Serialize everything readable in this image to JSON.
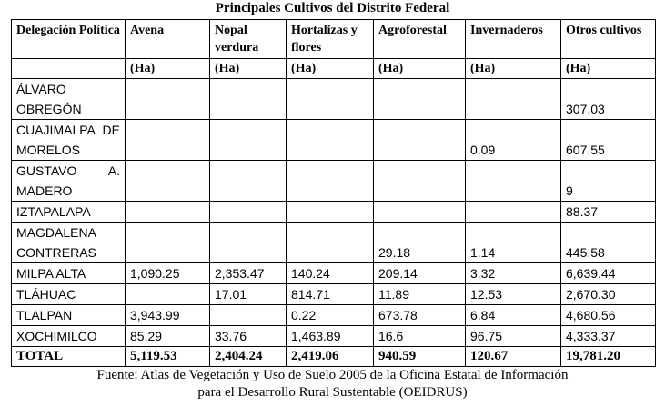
{
  "title": "Principales Cultivos del Distrito Federal",
  "table": {
    "columns": [
      "Delegación Política",
      "Avena",
      "Nopal verdura",
      "Hortalizas y flores",
      "Agroforestal",
      "Invernaderos",
      "Otros cultivos"
    ],
    "units": [
      "(Ha)",
      "(Ha)",
      "(Ha)",
      "(Ha)",
      "(Ha)",
      "(Ha)"
    ],
    "rows": [
      [
        "ÁLVARO OBREGÓN",
        null,
        null,
        null,
        null,
        null,
        "307.03"
      ],
      [
        "CUAJIMALPA DE MORELOS",
        null,
        null,
        null,
        null,
        "0.09",
        "607.55"
      ],
      [
        "GUSTAVO A. MADERO",
        null,
        null,
        null,
        null,
        null,
        "9"
      ],
      [
        "IZTAPALAPA",
        null,
        null,
        null,
        null,
        null,
        "88.37"
      ],
      [
        "MAGDALENA CONTRERAS",
        null,
        null,
        null,
        "29.18",
        "1.14",
        "445.58"
      ],
      [
        "MILPA ALTA",
        "1,090.25",
        "2,353.47",
        "140.24",
        "209.14",
        "3.32",
        "6,639.44"
      ],
      [
        "TLÁHUAC",
        null,
        "17.01",
        "814.71",
        "11.89",
        "12.53",
        "2,670.30"
      ],
      [
        "TLALPAN",
        "3,943.99",
        null,
        "0.22",
        "673.78",
        "6.84",
        "4,680.56"
      ],
      [
        "XOCHIMILCO",
        "85.29",
        "33.76",
        "1,463.89",
        "16.6",
        "96.75",
        "4,333.37"
      ]
    ],
    "total": [
      "TOTAL",
      "5,119.53",
      "2,404.24",
      "2,419.06",
      "940.59",
      "120.67",
      "19,781.20"
    ]
  },
  "source": [
    "Fuente: Atlas de Vegetación y Uso de Suelo 2005 de la Oficina Estatal de Información",
    "para el Desarrollo Rural Sustentable (OEIDRUS)"
  ]
}
